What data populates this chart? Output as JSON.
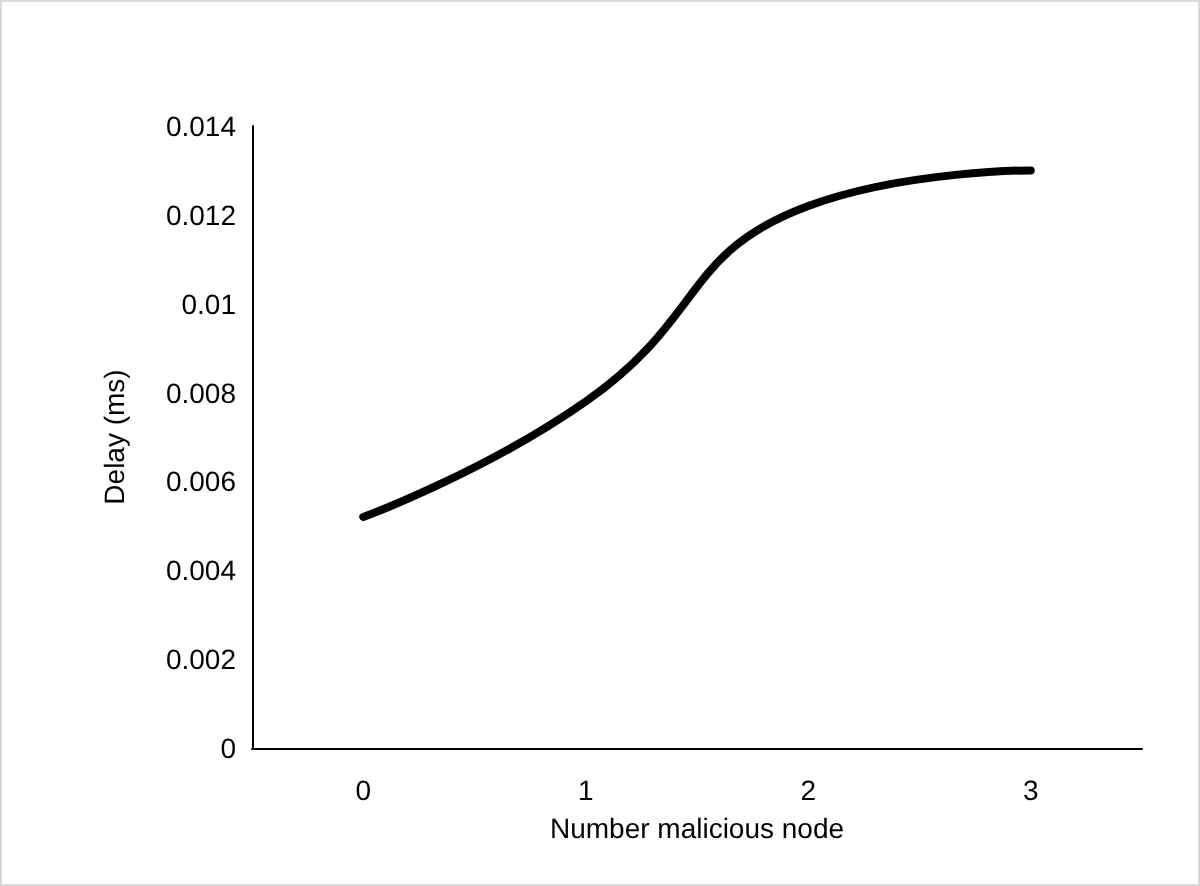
{
  "chart_data": {
    "type": "line",
    "xlabel": "Number malicious node",
    "ylabel": "Delay (ms)",
    "categories": [
      "0",
      "1",
      "2",
      "3"
    ],
    "series": [
      {
        "color": "#000000",
        "values": [
          0.0052,
          0.0078,
          0.0122,
          0.013
        ]
      }
    ],
    "ylim": [
      0,
      0.014
    ],
    "yticks": [
      0,
      0.002,
      0.004,
      0.006,
      0.008,
      0.01,
      0.012,
      0.014
    ],
    "grid": false,
    "marker": "none",
    "line_style": "solid"
  }
}
